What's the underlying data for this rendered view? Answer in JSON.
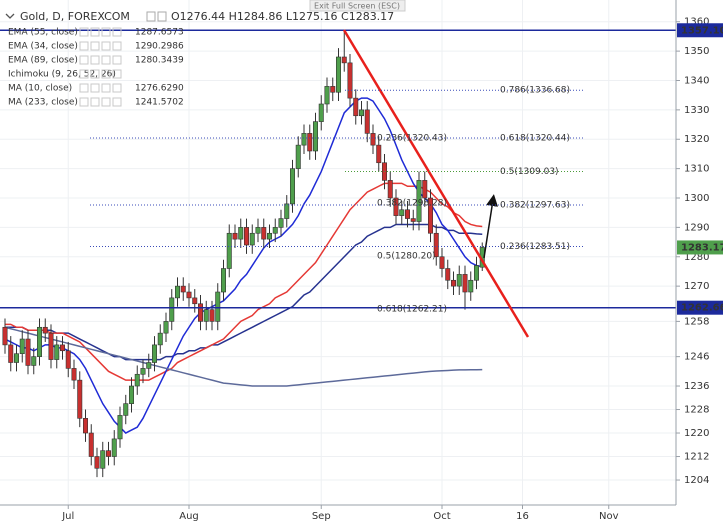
{
  "chart_data": {
    "type": "candlestick",
    "title": "Gold, D, FOREXCOM",
    "ohlc_header": "O1276.44 H1284.86 L1275.16 C1283.17",
    "exit_fullscreen_hint": "Exit Full Screen (ESC)",
    "categories": [
      null,
      null,
      null,
      null,
      null,
      null,
      null,
      null,
      null,
      null,
      null,
      "Jul",
      null,
      null,
      null,
      null,
      null,
      null,
      null,
      null,
      null,
      null,
      null,
      null,
      null,
      null,
      null,
      null,
      null,
      null,
      null,
      null,
      "Aug",
      null,
      null,
      null,
      null,
      null,
      null,
      null,
      null,
      null,
      null,
      null,
      null,
      null,
      null,
      null,
      null,
      null,
      null,
      null,
      null,
      null,
      null,
      "Sep",
      null,
      null,
      null,
      null,
      null,
      null,
      null,
      null,
      null,
      null,
      null,
      null,
      null,
      null,
      null,
      null,
      null,
      null,
      null,
      null,
      "Oct",
      null,
      null,
      null,
      null,
      null,
      null,
      null,
      null,
      null,
      null,
      null,
      null,
      null,
      "16",
      null,
      null,
      null,
      null,
      null,
      null,
      null,
      null,
      null,
      null,
      null,
      null,
      null,
      null,
      "Nov"
    ],
    "candles": {
      "up_color": "#4f9f4c",
      "down_color": "#c8302f",
      "open": [
        1256,
        1250,
        1244,
        1247,
        1252,
        1243,
        1246,
        1256,
        1254,
        1245,
        1250,
        1248,
        1242,
        1238,
        1225,
        1220,
        1212,
        1208,
        1214,
        1212,
        1218,
        1226,
        1230,
        1236,
        1240,
        1242,
        1244,
        1250,
        1254,
        1258,
        1266,
        1270,
        1268,
        1266,
        1264,
        1258,
        1262,
        1258,
        1268,
        1276,
        1288,
        1286,
        1290,
        1284,
        1288,
        1290,
        1286,
        1288,
        1290,
        1293,
        1298,
        1310,
        1318,
        1322,
        1316,
        1326,
        1332,
        1338,
        1336,
        1348,
        1346,
        1334,
        1328,
        1330,
        1322,
        1318,
        1312,
        1306,
        1300,
        1294,
        1296,
        1293,
        1292,
        1306,
        1300,
        1288,
        1280,
        1276,
        1272,
        1270,
        1274,
        1268,
        1272,
        1276.44,
        null,
        null,
        null,
        null,
        null,
        null,
        null,
        null,
        null,
        null,
        null,
        null,
        null,
        null,
        null,
        null,
        null,
        null,
        null,
        null,
        null,
        null
      ],
      "high": [
        1259,
        1253,
        1250,
        1255,
        1255,
        1249,
        1259,
        1259,
        1257,
        1253,
        1253,
        1251,
        1245,
        1241,
        1228,
        1223,
        1215,
        1217,
        1217,
        1221,
        1229,
        1233,
        1239,
        1243,
        1245,
        1247,
        1253,
        1257,
        1261,
        1269,
        1273,
        1273,
        1271,
        1269,
        1267,
        1265,
        1265,
        1271,
        1279,
        1291,
        1291,
        1293,
        1293,
        1291,
        1293,
        1293,
        1291,
        1293,
        1296,
        1301,
        1313,
        1321,
        1325,
        1325,
        1329,
        1335,
        1341,
        1341,
        1351,
        1357.1,
        1349,
        1337,
        1333,
        1333,
        1325,
        1321,
        1315,
        1309,
        1303,
        1299,
        1299,
        1296,
        1309,
        1309,
        1303,
        1291,
        1283,
        1279,
        1275,
        1277,
        1277,
        1275,
        1280,
        1284.86,
        null,
        null,
        null,
        null,
        null,
        null,
        null,
        null,
        null,
        null,
        null,
        null,
        null,
        null,
        null,
        null,
        null,
        null,
        null,
        null,
        null,
        null
      ],
      "low": [
        1247,
        1241,
        1241,
        1244,
        1240,
        1240,
        1243,
        1251,
        1242,
        1242,
        1245,
        1239,
        1235,
        1222,
        1217,
        1209,
        1205,
        1205,
        1209,
        1209,
        1215,
        1223,
        1227,
        1233,
        1237,
        1239,
        1241,
        1247,
        1251,
        1255,
        1263,
        1265,
        1263,
        1261,
        1255,
        1255,
        1255,
        1255,
        1265,
        1273,
        1283,
        1283,
        1281,
        1281,
        1285,
        1283,
        1283,
        1285,
        1287,
        1290,
        1295,
        1307,
        1315,
        1313,
        1313,
        1323,
        1329,
        1333,
        1333,
        1343,
        1331,
        1325,
        1325,
        1319,
        1315,
        1309,
        1303,
        1297,
        1291,
        1291,
        1290,
        1289,
        1289,
        1297,
        1285,
        1277,
        1273,
        1269,
        1267,
        1267,
        1262,
        1265,
        1269,
        1275.16,
        null,
        null,
        null,
        null,
        null,
        null,
        null,
        null,
        null,
        null,
        null,
        null,
        null,
        null,
        null,
        null,
        null,
        null,
        null,
        null,
        null,
        null
      ],
      "close": [
        1250,
        1244,
        1247,
        1252,
        1243,
        1246,
        1256,
        1254,
        1245,
        1250,
        1248,
        1242,
        1238,
        1225,
        1220,
        1212,
        1208,
        1214,
        1212,
        1218,
        1226,
        1230,
        1236,
        1240,
        1242,
        1244,
        1250,
        1254,
        1258,
        1266,
        1270,
        1268,
        1266,
        1264,
        1258,
        1262,
        1258,
        1268,
        1276,
        1288,
        1286,
        1290,
        1284,
        1288,
        1290,
        1286,
        1288,
        1290,
        1293,
        1298,
        1310,
        1318,
        1322,
        1316,
        1326,
        1332,
        1338,
        1336,
        1348,
        1346,
        1334,
        1328,
        1330,
        1322,
        1318,
        1312,
        1306,
        1300,
        1294,
        1296,
        1293,
        1292,
        1306,
        1300,
        1288,
        1280,
        1276,
        1272,
        1270,
        1274,
        1268,
        1272,
        1277,
        1283.17,
        null,
        null,
        null,
        null,
        null,
        null,
        null,
        null,
        null,
        null,
        null,
        null,
        null,
        null,
        null,
        null,
        null,
        null,
        null,
        null,
        null,
        null
      ]
    },
    "series": [
      {
        "name": "EMA (55, close)",
        "legend_value": "1287.6573",
        "color": "#26328f",
        "visible": true,
        "values": [
          1256,
          1256,
          1256,
          1256,
          1255,
          1255,
          1255,
          1255,
          1255,
          1254,
          1254,
          1254,
          1253,
          1252,
          1251,
          1250,
          1249,
          1248,
          1247,
          1246,
          1246,
          1245,
          1245,
          1245,
          1245,
          1245,
          1245,
          1245,
          1246,
          1246,
          1247,
          1247,
          1248,
          1248,
          1249,
          1249,
          1250,
          1250,
          1251,
          1252,
          1253,
          1254,
          1255,
          1256,
          1257,
          1258,
          1259,
          1260,
          1261,
          1262,
          1263,
          1265,
          1267,
          1268,
          1270,
          1272,
          1274,
          1276,
          1278,
          1280,
          1282,
          1284,
          1285,
          1287,
          1288,
          1289,
          1290,
          1290,
          1291,
          1291,
          1291,
          1291,
          1291,
          1291,
          1291,
          1290,
          1290,
          1289,
          1289,
          1288,
          1288,
          1288,
          1287.8,
          1287.66,
          null,
          null,
          null,
          null,
          null,
          null,
          null,
          null,
          null,
          null,
          null,
          null,
          null,
          null,
          null,
          null,
          null,
          null,
          null,
          null,
          null,
          null
        ]
      },
      {
        "name": "EMA (34, close)",
        "legend_value": "1290.2986",
        "color": "#e53935",
        "visible": true,
        "values": [
          1257,
          1257,
          1256,
          1256,
          1255,
          1255,
          1255,
          1255,
          1254,
          1254,
          1254,
          1253,
          1252,
          1251,
          1249,
          1247,
          1245,
          1243,
          1241,
          1240,
          1239,
          1238,
          1238,
          1238,
          1238,
          1238,
          1239,
          1240,
          1241,
          1242,
          1244,
          1245,
          1246,
          1247,
          1248,
          1249,
          1250,
          1251,
          1252,
          1254,
          1256,
          1258,
          1259,
          1260,
          1262,
          1263,
          1264,
          1266,
          1267,
          1268,
          1270,
          1272,
          1274,
          1276,
          1278,
          1281,
          1284,
          1287,
          1290,
          1293,
          1296,
          1298,
          1300,
          1302,
          1303,
          1304,
          1305,
          1305,
          1305,
          1305,
          1304,
          1304,
          1304,
          1303,
          1302,
          1300,
          1298,
          1297,
          1295,
          1294,
          1292,
          1291,
          1290.5,
          1290.3,
          null,
          null,
          null,
          null,
          null,
          null,
          null,
          null,
          null,
          null,
          null,
          null,
          null,
          null,
          null,
          null,
          null,
          null,
          null,
          null,
          null,
          null
        ]
      },
      {
        "name": "EMA (89, close)",
        "legend_value": "1280.3439",
        "color": "#b0b0b0",
        "visible": false
      },
      {
        "name": "Ichimoku (9, 26, 52, 26)",
        "color": "#b0b0b0",
        "visible": false
      },
      {
        "name": "MA (10, close)",
        "legend_value": "1276.6290",
        "color": "#1f2bd6",
        "visible": true,
        "values": [
          1252,
          1251,
          1250,
          1249,
          1249,
          1248,
          1249,
          1250,
          1250,
          1249,
          1249,
          1248,
          1247,
          1245,
          1242,
          1238,
          1234,
          1230,
          1227,
          1224,
          1222,
          1220,
          1221,
          1222,
          1225,
          1229,
          1233,
          1237,
          1241,
          1245,
          1249,
          1253,
          1256,
          1259,
          1261,
          1262,
          1263,
          1264,
          1265,
          1267,
          1269,
          1272,
          1274,
          1277,
          1280,
          1283,
          1285,
          1286,
          1287,
          1289,
          1291,
          1294,
          1298,
          1301,
          1305,
          1309,
          1314,
          1319,
          1324,
          1329,
          1331,
          1333,
          1334,
          1334,
          1333,
          1330,
          1327,
          1323,
          1318,
          1313,
          1309,
          1305,
          1302,
          1300,
          1298,
          1295,
          1291,
          1289,
          1286,
          1283,
          1280,
          1278,
          1277,
          1276.629,
          null,
          null,
          null,
          null,
          null,
          null,
          null,
          null,
          null,
          null,
          null,
          null,
          null,
          null,
          null,
          null,
          null,
          null,
          null,
          null,
          null,
          null
        ]
      },
      {
        "name": "MA (233, close)",
        "legend_value": "1241.5702",
        "color": "#5d6a9a",
        "visible": true,
        "values": [
          1256,
          1255.5,
          1255,
          1254.5,
          1254,
          1253.5,
          1253,
          1252.5,
          1252,
          1251.5,
          1251,
          1250.5,
          1250,
          1249.5,
          1249,
          1248.5,
          1248,
          1247.5,
          1247,
          1246.5,
          1246,
          1245.5,
          1245,
          1244.5,
          1244,
          1243.5,
          1243,
          1242.5,
          1242,
          1241.5,
          1241,
          1240.5,
          1240,
          1239.5,
          1239,
          1238.5,
          1238,
          1237.5,
          1237,
          1236.8,
          1236.6,
          1236.4,
          1236.2,
          1236,
          1236,
          1236,
          1236,
          1236,
          1236,
          1236,
          1236.2,
          1236.4,
          1236.6,
          1236.8,
          1237,
          1237.2,
          1237.4,
          1237.6,
          1237.8,
          1238,
          1238.2,
          1238.4,
          1238.6,
          1238.8,
          1239,
          1239.2,
          1239.4,
          1239.6,
          1239.8,
          1240,
          1240.2,
          1240.4,
          1240.6,
          1240.8,
          1241,
          1241.1,
          1241.2,
          1241.3,
          1241.4,
          1241.5,
          1241.5,
          1241.55,
          1241.55,
          1241.57,
          null,
          null,
          null,
          null,
          null,
          null,
          null,
          null,
          null,
          null,
          null,
          null,
          null,
          null,
          null,
          null,
          null,
          null,
          null,
          null,
          null,
          null
        ]
      }
    ],
    "ylim": [
      1195.5,
      1367.4
    ],
    "yticks": [
      1360,
      1350,
      1340,
      1330,
      1320,
      1310,
      1300,
      1290,
      1280,
      1270,
      1258,
      1246,
      1236,
      1228,
      1220,
      1212,
      1204
    ],
    "grid": true,
    "hlines": [
      {
        "value": 1357.1,
        "label": "1357.10",
        "color": "#1c2a9c"
      },
      {
        "value": 1262.66,
        "label": "1262.66",
        "color": "#1c2a9c"
      }
    ],
    "last_price": {
      "value": 1283.17,
      "color": "#4f9f4c"
    },
    "fib_levels": [
      {
        "label": "0.786(1336.68)",
        "value": 1336.68,
        "color": "#3a4bb8"
      },
      {
        "label": "0.618(1320.44)",
        "value": 1320.44,
        "color": "#3a4bb8"
      },
      {
        "label": "0.5(1309.03)",
        "value": 1309.03,
        "color": "#4c9b3a"
      },
      {
        "label": "0.382(1297.63)",
        "value": 1297.63,
        "color": "#3a4bb8"
      },
      {
        "label": "0.236(1283.51)",
        "value": 1283.51,
        "color": "#3a4bb8"
      }
    ],
    "fib_levels_2": [
      {
        "label": "0.236(1320.43)",
        "value": 1320.43,
        "color": "#3a4bb8"
      },
      {
        "label": "0.382(1298.28)",
        "value": 1298.28,
        "color": "#3a4bb8"
      },
      {
        "label": "0.5(1280.20)",
        "value": 1280.2,
        "color": "#3a4bb8"
      },
      {
        "label": "0.618(1262.21)",
        "value": 1262.21,
        "color": "#3a4bb8"
      }
    ]
  }
}
